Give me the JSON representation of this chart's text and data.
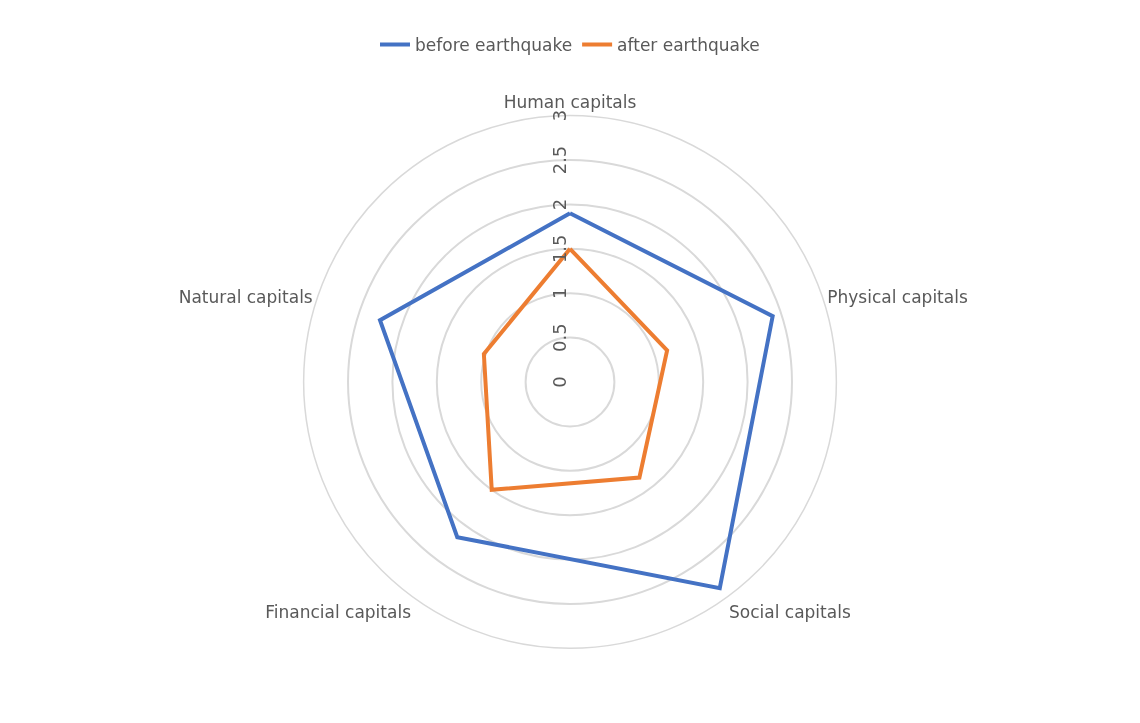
{
  "chart_data": {
    "type": "radar",
    "categories": [
      "Human capitals",
      "Physical capitals",
      "Social capitals",
      "Financial capitals",
      "Natural capitals"
    ],
    "series": [
      {
        "name": "before earthquake",
        "color": "#4472c4",
        "values": [
          1.9,
          2.4,
          2.87,
          2.16,
          2.25
        ]
      },
      {
        "name": "after earthquake",
        "color": "#ed7d31",
        "values": [
          1.5,
          1.15,
          1.33,
          1.5,
          1.02
        ]
      }
    ],
    "ylim": [
      0,
      3
    ],
    "yticks": [
      0,
      0.5,
      1,
      1.5,
      2,
      2.5,
      3
    ],
    "grid": true,
    "legend": "top",
    "marker": "none",
    "line_style": "solid"
  }
}
